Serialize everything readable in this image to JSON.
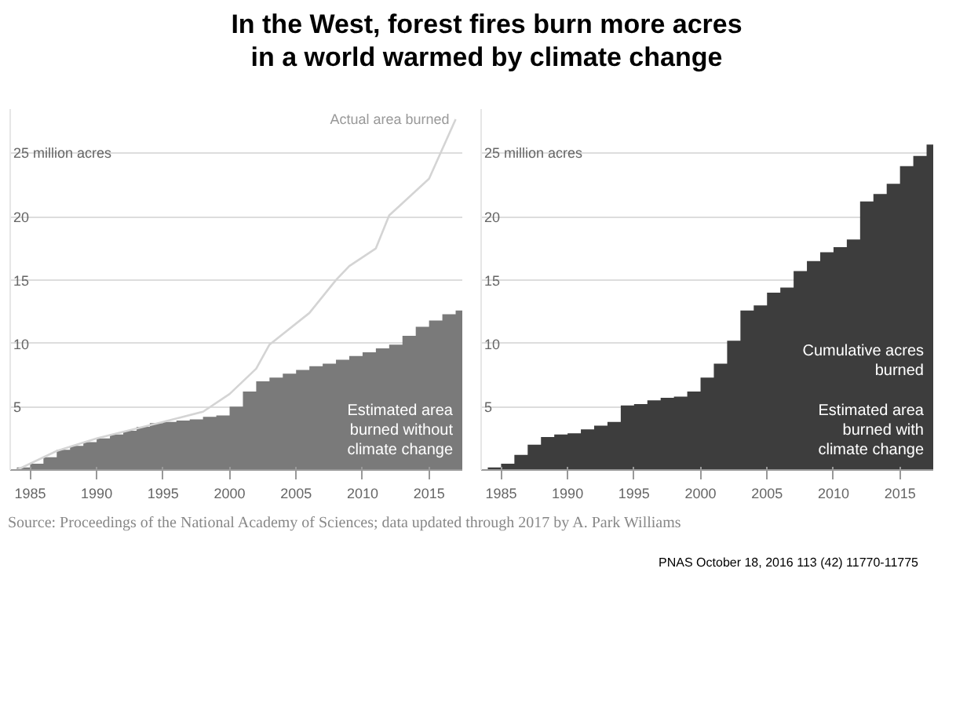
{
  "chart_data": [
    {
      "type": "area",
      "title": "In the West, forest fires burn more acres in a world warmed by climate change",
      "x": [
        1984,
        1985,
        1986,
        1987,
        1988,
        1989,
        1990,
        1991,
        1992,
        1993,
        1994,
        1995,
        1996,
        1997,
        1998,
        1999,
        2000,
        2001,
        2002,
        2003,
        2004,
        2005,
        2006,
        2007,
        2008,
        2009,
        2010,
        2011,
        2012,
        2013,
        2014,
        2015,
        2016,
        2017
      ],
      "series": [
        {
          "color": "#7a7a7a",
          "values": [
            0.2,
            0.5,
            1.0,
            1.6,
            1.9,
            2.2,
            2.5,
            2.8,
            3.1,
            3.4,
            3.7,
            3.8,
            3.9,
            4.0,
            4.2,
            4.3,
            5.0,
            6.2,
            7.0,
            7.3,
            7.6,
            7.9,
            8.2,
            8.4,
            8.7,
            9.0,
            9.3,
            9.6,
            9.9,
            10.6,
            11.3,
            11.8,
            12.3,
            12.6
          ]
        },
        {
          "type": "line",
          "color": "#d4d4d4",
          "x": [
            1984,
            1987,
            1990,
            1995,
            1998,
            2000,
            2002,
            2003,
            2006,
            2008,
            2009,
            2011,
            2012,
            2015,
            2017
          ],
          "values": [
            0,
            1.5,
            2.5,
            3.8,
            4.6,
            6,
            8,
            9.9,
            12.4,
            15,
            16.1,
            17.5,
            20.1,
            23,
            27.7
          ]
        }
      ],
      "annotations": [
        {
          "text": "Actual area burned",
          "x": 2017,
          "y": 27.7
        },
        "Estimated area burned without climate change"
      ],
      "xlim": [
        1983.5,
        2017.5
      ],
      "ylim": [
        0,
        28.5
      ],
      "xticks": [
        1985,
        1990,
        1995,
        2000,
        2005,
        2010,
        2015
      ],
      "yticks": [
        5,
        10,
        15,
        20,
        {
          "value": 25,
          "label": "25 million acres"
        }
      ],
      "grid": "y"
    },
    {
      "type": "area",
      "x": [
        1984,
        1985,
        1986,
        1987,
        1988,
        1989,
        1990,
        1991,
        1992,
        1993,
        1994,
        1995,
        1996,
        1997,
        1998,
        1999,
        2000,
        2001,
        2002,
        2003,
        2004,
        2005,
        2006,
        2007,
        2008,
        2009,
        2010,
        2011,
        2012,
        2013,
        2014,
        2015,
        2016,
        2017
      ],
      "series": [
        {
          "color": "#3d3d3d",
          "values": [
            0.2,
            0.5,
            1.2,
            2.0,
            2.6,
            2.8,
            2.9,
            3.2,
            3.5,
            3.8,
            5.1,
            5.2,
            5.5,
            5.7,
            5.8,
            6.2,
            7.3,
            8.4,
            10.2,
            12.6,
            13.0,
            14.0,
            14.4,
            15.7,
            16.5,
            17.2,
            17.6,
            18.2,
            21.2,
            21.8,
            22.6,
            24.0,
            24.8,
            25.7
          ]
        }
      ],
      "annotations": [
        "Cumulative acres burned",
        "Estimated area burned with climate change"
      ],
      "xlim": [
        1983.5,
        2017.5
      ],
      "ylim": [
        0,
        28.5
      ],
      "xticks": [
        1985,
        1990,
        1995,
        2000,
        2005,
        2010,
        2015
      ],
      "yticks": [
        5,
        10,
        15,
        20,
        {
          "value": 25,
          "label": "25 million acres"
        }
      ],
      "grid": "y"
    },
    {
      "type": "other",
      "annotations": [
        "Source: Proceedings of the National Academy of Sciences; data updated through 2017 by A. Park Williams",
        "PNAS October 18, 2016 113 (42) 11770-11775"
      ]
    }
  ]
}
